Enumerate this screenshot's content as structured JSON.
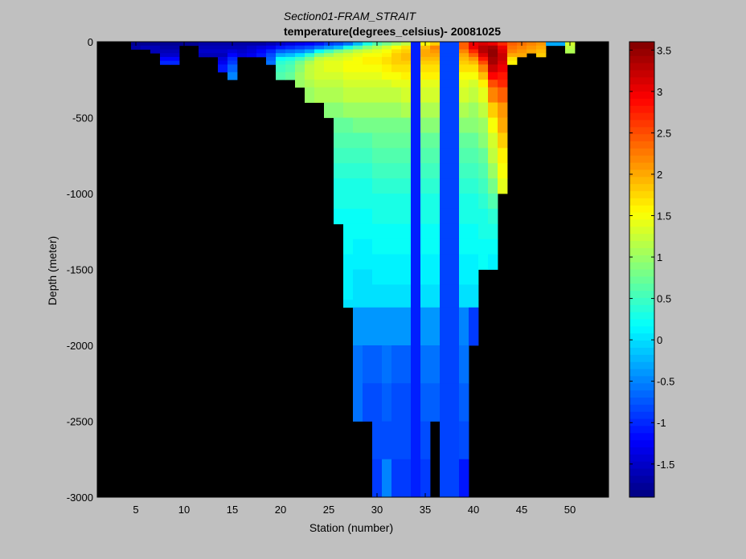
{
  "chart_data": {
    "type": "heatmap",
    "title": "Section01-FRAM_STRAIT",
    "subtitle": "temperature(degrees_celsius)- 20081025",
    "xlabel": "Station (number)",
    "ylabel": "Depth (meter)",
    "xlim": [
      1,
      54
    ],
    "ylim": [
      -3000,
      0
    ],
    "xticks": [
      5,
      10,
      15,
      20,
      25,
      30,
      35,
      40,
      45,
      50
    ],
    "yticks": [
      0,
      -500,
      -1000,
      -1500,
      -2000,
      -2500,
      -3000
    ],
    "colorbar": {
      "range": [
        -1.9,
        3.6
      ],
      "ticks": [
        -1.5,
        -1,
        -0.5,
        0,
        0.5,
        1,
        1.5,
        2,
        2.5,
        3,
        3.5
      ],
      "colormap": "jet"
    },
    "background": "#000000",
    "depth_bins": [
      0,
      25,
      50,
      75,
      100,
      125,
      150,
      200,
      250,
      300,
      400,
      500,
      600,
      700,
      800,
      900,
      1000,
      1100,
      1200,
      1300,
      1400,
      1500,
      1600,
      1700,
      1750,
      2000,
      2250,
      2500,
      2750,
      3000
    ],
    "stations": [
      {
        "station": 5,
        "depth": 50,
        "values": [
          -1.8,
          -1.7
        ]
      },
      {
        "station": 6,
        "depth": 50,
        "values": [
          -1.8,
          -1.6
        ]
      },
      {
        "station": 7,
        "depth": 75,
        "values": [
          -1.8,
          -1.6,
          -1.6
        ]
      },
      {
        "station": 8,
        "depth": 150,
        "values": [
          -1.8,
          -1.7,
          -1.6,
          -1.5,
          -1.2,
          -1.0
        ]
      },
      {
        "station": 9,
        "depth": 150,
        "values": [
          -1.8,
          -1.7,
          -1.6,
          -1.5,
          -1.2,
          -1.0
        ]
      },
      {
        "station": 10,
        "depth": 25,
        "values": [
          -1.8
        ]
      },
      {
        "station": 11,
        "depth": 25,
        "values": [
          -1.8
        ]
      },
      {
        "station": 12,
        "depth": 100,
        "values": [
          -1.7,
          -1.6,
          -1.5,
          -1.6
        ]
      },
      {
        "station": 13,
        "depth": 100,
        "values": [
          -1.7,
          -1.6,
          -1.5,
          -1.6
        ]
      },
      {
        "station": 14,
        "depth": 200,
        "values": [
          -1.7,
          -1.6,
          -1.5,
          -1.6,
          -1.4,
          -1.3,
          -1.1
        ]
      },
      {
        "station": 15,
        "depth": 250,
        "values": [
          -1.7,
          -1.6,
          -1.4,
          -1.2,
          -1.0,
          -0.9,
          -0.7,
          -0.5
        ]
      },
      {
        "station": 16,
        "depth": 100,
        "values": [
          -1.7,
          -1.6,
          -1.5,
          -1.4
        ]
      },
      {
        "station": 17,
        "depth": 100,
        "values": [
          -1.7,
          -1.5,
          -1.4,
          -1.3
        ]
      },
      {
        "station": 18,
        "depth": 100,
        "values": [
          -1.7,
          -1.4,
          -1.2,
          -1.1
        ]
      },
      {
        "station": 19,
        "depth": 150,
        "values": [
          -1.6,
          -1.3,
          -1.0,
          -0.8,
          -0.7,
          -0.6
        ]
      },
      {
        "station": 20,
        "depth": 250,
        "values": [
          -1.5,
          -1.1,
          -0.7,
          -0.3,
          0.2,
          0.4,
          0.5,
          0.6
        ]
      },
      {
        "station": 21,
        "depth": 250,
        "values": [
          -1.4,
          -1.0,
          -0.6,
          -0.2,
          0.3,
          0.5,
          0.6,
          0.7
        ]
      },
      {
        "station": 22,
        "depth": 300,
        "values": [
          -1.3,
          -0.9,
          -0.5,
          0.0,
          0.5,
          0.8,
          0.9,
          1.0,
          1.0
        ]
      },
      {
        "station": 23,
        "depth": 400,
        "values": [
          -1.2,
          -0.8,
          -0.3,
          0.4,
          0.8,
          1.1,
          1.2,
          1.2,
          1.1,
          1.0
        ]
      },
      {
        "station": 24,
        "depth": 400,
        "values": [
          -1.1,
          -0.6,
          0.2,
          0.8,
          1.2,
          1.3,
          1.3,
          1.3,
          1.2,
          1.1
        ]
      },
      {
        "station": 25,
        "depth": 500,
        "values": [
          -0.9,
          -0.4,
          0.5,
          1.0,
          1.3,
          1.4,
          1.4,
          1.3,
          1.2,
          1.1,
          0.9
        ]
      },
      {
        "station": 26,
        "depth": 1200,
        "values": [
          -0.8,
          -0.2,
          0.8,
          1.2,
          1.3,
          1.4,
          1.4,
          1.3,
          1.2,
          1.1,
          0.9,
          0.7,
          0.6,
          0.5,
          0.4,
          0.3,
          0.3,
          0.2
        ]
      },
      {
        "station": 27,
        "depth": 1750,
        "values": [
          -0.6,
          0.3,
          1.0,
          1.3,
          1.4,
          1.5,
          1.5,
          1.4,
          1.3,
          1.2,
          1.0,
          0.7,
          0.6,
          0.5,
          0.4,
          0.3,
          0.3,
          0.2,
          0.2,
          0.2,
          0.1,
          0.1,
          0.1,
          0.0,
          0.0
        ]
      },
      {
        "station": 28,
        "depth": 2500,
        "values": [
          -0.2,
          0.6,
          1.2,
          1.4,
          1.5,
          1.5,
          1.5,
          1.4,
          1.3,
          1.2,
          1.0,
          0.8,
          0.6,
          0.5,
          0.4,
          0.3,
          0.3,
          0.2,
          0.2,
          0.1,
          0.1,
          0.0,
          0.0,
          0.0,
          -0.4,
          -0.6,
          -0.6,
          -0.7
        ]
      },
      {
        "station": 29,
        "depth": 2500,
        "values": [
          0.3,
          0.9,
          1.3,
          1.5,
          1.6,
          1.6,
          1.5,
          1.4,
          1.3,
          1.2,
          1.0,
          0.8,
          0.6,
          0.5,
          0.4,
          0.3,
          0.3,
          0.2,
          0.2,
          0.1,
          0.1,
          0.0,
          0.0,
          0.0,
          -0.4,
          -0.7,
          -0.8,
          -0.8
        ]
      },
      {
        "station": 30,
        "depth": 3000,
        "values": [
          0.6,
          1.1,
          1.4,
          1.5,
          1.6,
          1.6,
          1.5,
          1.4,
          1.3,
          1.2,
          1.0,
          0.8,
          0.7,
          0.6,
          0.5,
          0.4,
          0.3,
          0.3,
          0.2,
          0.2,
          0.1,
          0.1,
          0.0,
          0.0,
          -0.4,
          -0.7,
          -0.8,
          -0.8,
          -0.9,
          -0.9
        ]
      },
      {
        "station": 31,
        "depth": 3000,
        "values": [
          0.8,
          1.3,
          1.5,
          1.6,
          1.7,
          1.7,
          1.6,
          1.5,
          1.3,
          1.2,
          1.0,
          0.8,
          0.7,
          0.6,
          0.5,
          0.4,
          0.3,
          0.3,
          0.2,
          0.2,
          0.1,
          0.1,
          0.0,
          0.0,
          -0.4,
          -0.6,
          -0.7,
          -0.8,
          -0.5,
          -0.5
        ]
      },
      {
        "station": 32,
        "depth": 3000,
        "values": [
          1.0,
          1.5,
          1.7,
          1.8,
          1.8,
          1.8,
          1.7,
          1.5,
          1.4,
          1.2,
          1.0,
          0.8,
          0.7,
          0.6,
          0.5,
          0.4,
          0.3,
          0.3,
          0.2,
          0.2,
          0.1,
          0.1,
          0.0,
          0.0,
          -0.4,
          -0.7,
          -0.8,
          -0.8,
          -0.9,
          -0.9
        ]
      },
      {
        "station": 33,
        "depth": 3000,
        "values": [
          1.2,
          1.7,
          1.8,
          1.9,
          1.9,
          1.8,
          1.7,
          1.6,
          1.4,
          1.3,
          1.1,
          0.8,
          0.7,
          0.6,
          0.5,
          0.4,
          0.3,
          0.3,
          0.2,
          0.2,
          0.1,
          0.1,
          0.0,
          0.0,
          -0.4,
          -0.7,
          -0.8,
          -0.8,
          -0.9,
          -0.9
        ]
      },
      {
        "station": 34,
        "depth": 3000,
        "values": [
          -1.05,
          -1.05,
          -1.05,
          -1.05,
          -1.05,
          -1.05,
          -1.05,
          -1.05,
          -1.05,
          -1.05,
          -1.05,
          -1.05,
          -1.05,
          -1.05,
          -1.05,
          -1.05,
          -1.05,
          -1.05,
          -1.05,
          -1.05,
          -1.05,
          -1.05,
          -1.05,
          -1.05,
          -1.05,
          -1.05,
          -1.05,
          -1.05,
          -1.05,
          -1.05
        ]
      },
      {
        "station": 35,
        "depth": 3000,
        "values": [
          1.5,
          1.9,
          2.0,
          2.0,
          1.9,
          1.8,
          1.7,
          1.6,
          1.4,
          1.3,
          1.1,
          0.9,
          0.7,
          0.6,
          0.5,
          0.4,
          0.3,
          0.3,
          0.2,
          0.2,
          0.1,
          0.1,
          0.0,
          0.0,
          -0.4,
          -0.6,
          -0.7,
          -0.8,
          -0.9,
          -0.9
        ]
      },
      {
        "station": 36,
        "depth": 2500,
        "values": [
          1.8,
          2.2,
          2.1,
          2.0,
          1.9,
          1.8,
          1.7,
          1.6,
          1.4,
          1.3,
          1.1,
          0.9,
          0.7,
          0.6,
          0.5,
          0.4,
          0.3,
          0.3,
          0.2,
          0.2,
          0.1,
          0.1,
          0.0,
          0.0,
          -0.4,
          -0.6,
          -0.7,
          -0.8
        ]
      },
      {
        "station": 37,
        "depth": 3000,
        "values": [
          -0.85,
          -0.85,
          -0.85,
          -0.85,
          -0.85,
          -0.85,
          -0.85,
          -0.85,
          -0.85,
          -0.85,
          -0.85,
          -0.85,
          -0.85,
          -0.85,
          -0.85,
          -0.85,
          -0.85,
          -0.85,
          -0.85,
          -0.85,
          -0.85,
          -0.85,
          -0.85,
          -0.85,
          -0.85,
          -0.85,
          -0.85,
          -0.85,
          -0.85,
          -0.85
        ]
      },
      {
        "station": 38,
        "depth": 3000,
        "values": [
          -0.85,
          -0.85,
          -0.85,
          -0.85,
          -0.85,
          -0.85,
          -0.85,
          -0.85,
          -0.85,
          -0.85,
          -0.85,
          -0.85,
          -0.85,
          -0.85,
          -0.85,
          -0.85,
          -0.85,
          -0.85,
          -0.85,
          -0.85,
          -0.85,
          -0.85,
          -0.85,
          -0.85,
          -0.85,
          -0.85,
          -0.85,
          -0.85,
          -0.85,
          -0.85
        ]
      },
      {
        "station": 39,
        "depth": 3000,
        "values": [
          2.4,
          2.4,
          2.2,
          2.0,
          1.9,
          1.8,
          1.7,
          1.5,
          1.4,
          1.3,
          1.1,
          0.9,
          0.7,
          0.6,
          0.5,
          0.4,
          0.3,
          0.3,
          0.2,
          0.2,
          0.1,
          0.1,
          0.0,
          0.0,
          -0.5,
          -0.6,
          -0.7,
          -0.8,
          -1.1,
          -1.1
        ]
      },
      {
        "station": 40,
        "depth": 2000,
        "values": [
          3.0,
          3.0,
          2.7,
          2.4,
          2.1,
          1.9,
          1.7,
          1.5,
          1.3,
          1.2,
          1.0,
          0.9,
          0.7,
          0.6,
          0.5,
          0.4,
          0.3,
          0.3,
          0.2,
          0.2,
          0.1,
          0.1,
          0.0,
          0.0,
          -0.9
        ]
      },
      {
        "station": 41,
        "depth": 1500,
        "values": [
          3.1,
          3.3,
          3.3,
          3.1,
          2.8,
          2.5,
          2.2,
          1.9,
          1.6,
          1.4,
          1.2,
          1.0,
          0.9,
          0.7,
          0.6,
          0.5,
          0.4,
          0.3,
          0.3,
          0.2,
          0.2
        ]
      },
      {
        "station": 42,
        "depth": 1500,
        "values": [
          3.0,
          3.4,
          3.5,
          3.5,
          3.4,
          3.4,
          3.2,
          2.9,
          2.5,
          2.2,
          1.8,
          1.5,
          1.3,
          1.2,
          1.0,
          0.8,
          0.6,
          0.4,
          0.3,
          0.2,
          0.1
        ]
      },
      {
        "station": 43,
        "depth": 1000,
        "values": [
          2.7,
          3.0,
          3.1,
          3.2,
          3.2,
          3.1,
          3.0,
          2.8,
          2.7,
          2.4,
          2.1,
          2.0,
          1.8,
          1.6,
          1.5,
          1.4,
          1.0
        ]
      },
      {
        "station": 44,
        "depth": 150,
        "values": [
          2.4,
          2.3,
          2.2,
          2.0,
          1.7,
          1.6
        ]
      },
      {
        "station": 45,
        "depth": 100,
        "values": [
          2.3,
          2.2,
          2.1,
          2.0
        ]
      },
      {
        "station": 46,
        "depth": 75,
        "values": [
          2.2,
          2.1,
          2.0
        ]
      },
      {
        "station": 47,
        "depth": 100,
        "values": [
          2.1,
          2.0,
          1.9,
          1.8
        ]
      },
      {
        "station": 48,
        "depth": 25,
        "values": [
          -0.3
        ]
      },
      {
        "station": 49,
        "depth": 25,
        "values": [
          -0.3
        ]
      },
      {
        "station": 50,
        "depth": 75,
        "values": [
          1.3,
          1.2,
          1.1
        ]
      }
    ]
  }
}
